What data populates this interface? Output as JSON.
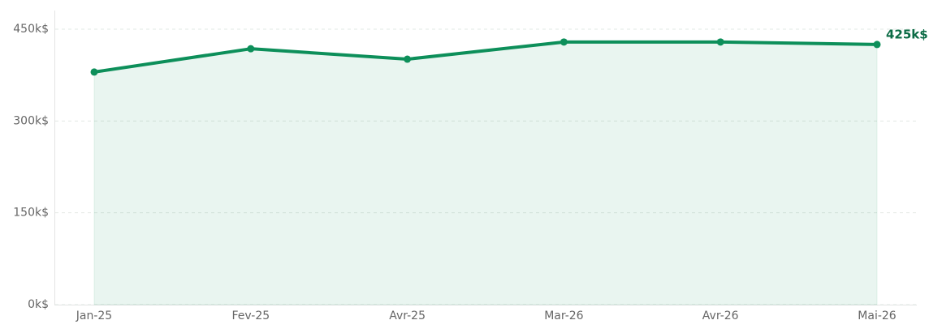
{
  "chart_data": {
    "type": "line",
    "categories": [
      "Jan-25",
      "Fev-25",
      "Avr-25",
      "Mar-26",
      "Avr-26",
      "Mai-26"
    ],
    "values": [
      380,
      418,
      401,
      429,
      429,
      425
    ],
    "value_labels": [
      null,
      null,
      null,
      null,
      null,
      "425k$"
    ],
    "color": "#0d8f5a",
    "ylim": [
      0,
      450
    ],
    "yticks": [
      {
        "value": 0,
        "label": "0k$"
      },
      {
        "value": 150,
        "label": "150k$"
      },
      {
        "value": 300,
        "label": "300k$"
      },
      {
        "value": 450,
        "label": "450k$"
      }
    ],
    "grid": true
  }
}
